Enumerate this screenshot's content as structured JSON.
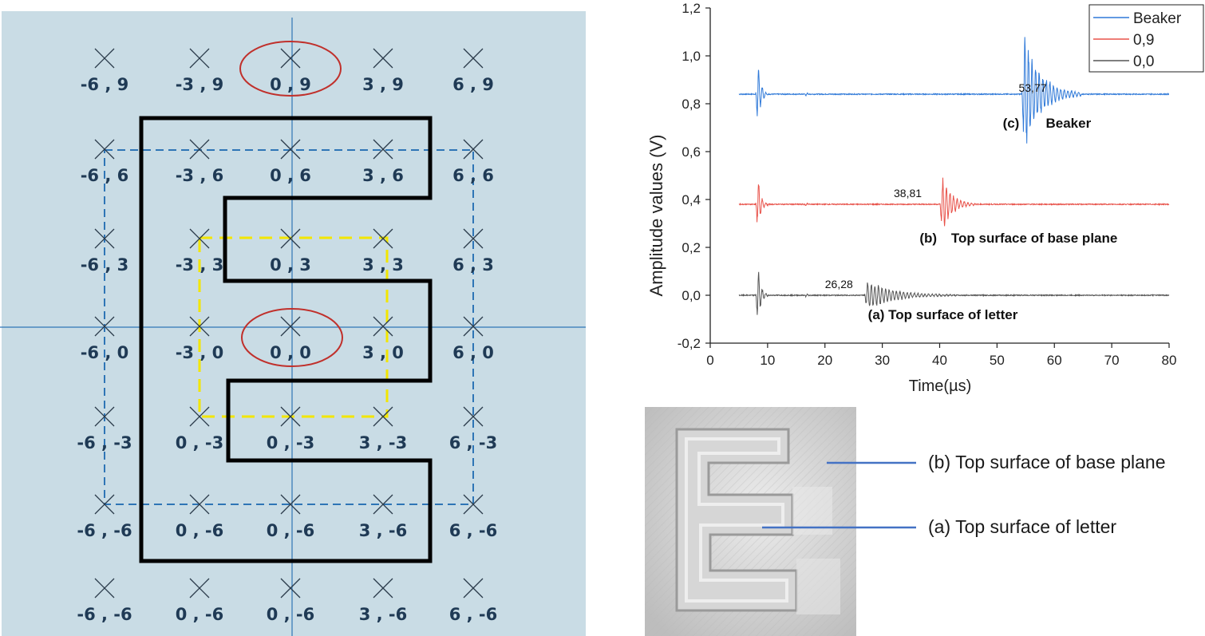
{
  "grid": {
    "rows": [
      {
        "labels": [
          "-6 , 9",
          "-3 , 9",
          "0 , 9",
          "3 , 9",
          "6 , 9"
        ]
      },
      {
        "labels": [
          "-6 , 6",
          "-3 , 6",
          "0 , 6",
          "3 , 6",
          "6 , 6"
        ]
      },
      {
        "labels": [
          "-6 , 3",
          "-3 , 3",
          "0 , 3",
          "3 , 3",
          "6 , 3"
        ]
      },
      {
        "labels": [
          "-6 , 0",
          "-3 , 0",
          "0 , 0",
          "3 , 0",
          "6 , 0"
        ]
      },
      {
        "labels": [
          "-6 , -3",
          "0 , -3",
          "0 , -3",
          "3 , -3",
          "6 , -3"
        ]
      },
      {
        "labels": [
          "-6 , -6",
          "0 , -6",
          "0 , -6",
          "3 , -6",
          "6 , -6"
        ]
      },
      {
        "labels": [
          "-6 , -6",
          "0 , -6",
          "0 , -6",
          "3 , -6",
          "6 , -6"
        ]
      }
    ],
    "highlighted_points": [
      "0 , 9",
      "0 , 0"
    ],
    "colors": {
      "background": "#c9dce5",
      "label": "#1f3a55",
      "axis": "#2e75b6",
      "letter_outline": "#000000",
      "outer_dashed": "#2e75b6",
      "inner_dashed": "#f2e600",
      "highlight_ellipse": "#c0302b"
    }
  },
  "chart_data": {
    "type": "line",
    "title": "",
    "xlabel": "Time(µs)",
    "ylabel": "Amplitude values (V)",
    "xlim": [
      0,
      80
    ],
    "ylim": [
      -0.2,
      1.2
    ],
    "x_ticks": [
      "0",
      "10",
      "20",
      "30",
      "40",
      "50",
      "60",
      "70",
      "80"
    ],
    "y_ticks": [
      "-0,2",
      "0,0",
      "0,2",
      "0,4",
      "0,6",
      "0,8",
      "1,0",
      "1,2"
    ],
    "legend_position": "top-right",
    "series": [
      {
        "name": "Beaker",
        "color": "#2f79d8",
        "baseline": 0.84,
        "bursts": [
          {
            "t": 8.3,
            "amp": 0.16,
            "dur": 1.8
          },
          {
            "t": 16.8,
            "amp": 0.01,
            "dur": 0.6
          },
          {
            "t": 54.7,
            "amp": 0.28,
            "dur": 10.0
          }
        ]
      },
      {
        "name": "0,9",
        "color": "#e8524a",
        "baseline": 0.38,
        "bursts": [
          {
            "t": 8.3,
            "amp": 0.13,
            "dur": 1.8
          },
          {
            "t": 16.8,
            "amp": 0.01,
            "dur": 0.6
          },
          {
            "t": 40.4,
            "amp": 0.13,
            "dur": 6.0
          }
        ]
      },
      {
        "name": "0,0",
        "color": "#555555",
        "baseline": 0.0,
        "bursts": [
          {
            "t": 8.3,
            "amp": 0.14,
            "dur": 1.8
          },
          {
            "t": 16.8,
            "amp": 0.01,
            "dur": 0.6
          },
          {
            "t": 27.3,
            "amp": 0.07,
            "dur": 16.0
          }
        ]
      }
    ],
    "annotations": [
      {
        "text": "53,77",
        "x": 53.77,
        "y": 0.85,
        "style": "small"
      },
      {
        "text": "(c)",
        "x": 51.0,
        "y": 0.7,
        "style": "bold"
      },
      {
        "text": "Beaker",
        "x": 58.5,
        "y": 0.7,
        "style": "bold"
      },
      {
        "text": "38,81",
        "x": 32.0,
        "y": 0.41,
        "style": "small"
      },
      {
        "text": "(b)",
        "x": 36.5,
        "y": 0.22,
        "style": "bold"
      },
      {
        "text": "Top surface of base plane",
        "x": 42.0,
        "y": 0.22,
        "style": "bold"
      },
      {
        "text": "26,28",
        "x": 20.0,
        "y": 0.03,
        "style": "small"
      },
      {
        "text": "(a) Top surface of letter",
        "x": 27.5,
        "y": -0.1,
        "style": "bold"
      }
    ]
  },
  "photo_callouts": {
    "base_plane": "(b) Top surface of  base plane",
    "letter": "(a) Top surface of  letter",
    "line_color": "#4472c4"
  }
}
